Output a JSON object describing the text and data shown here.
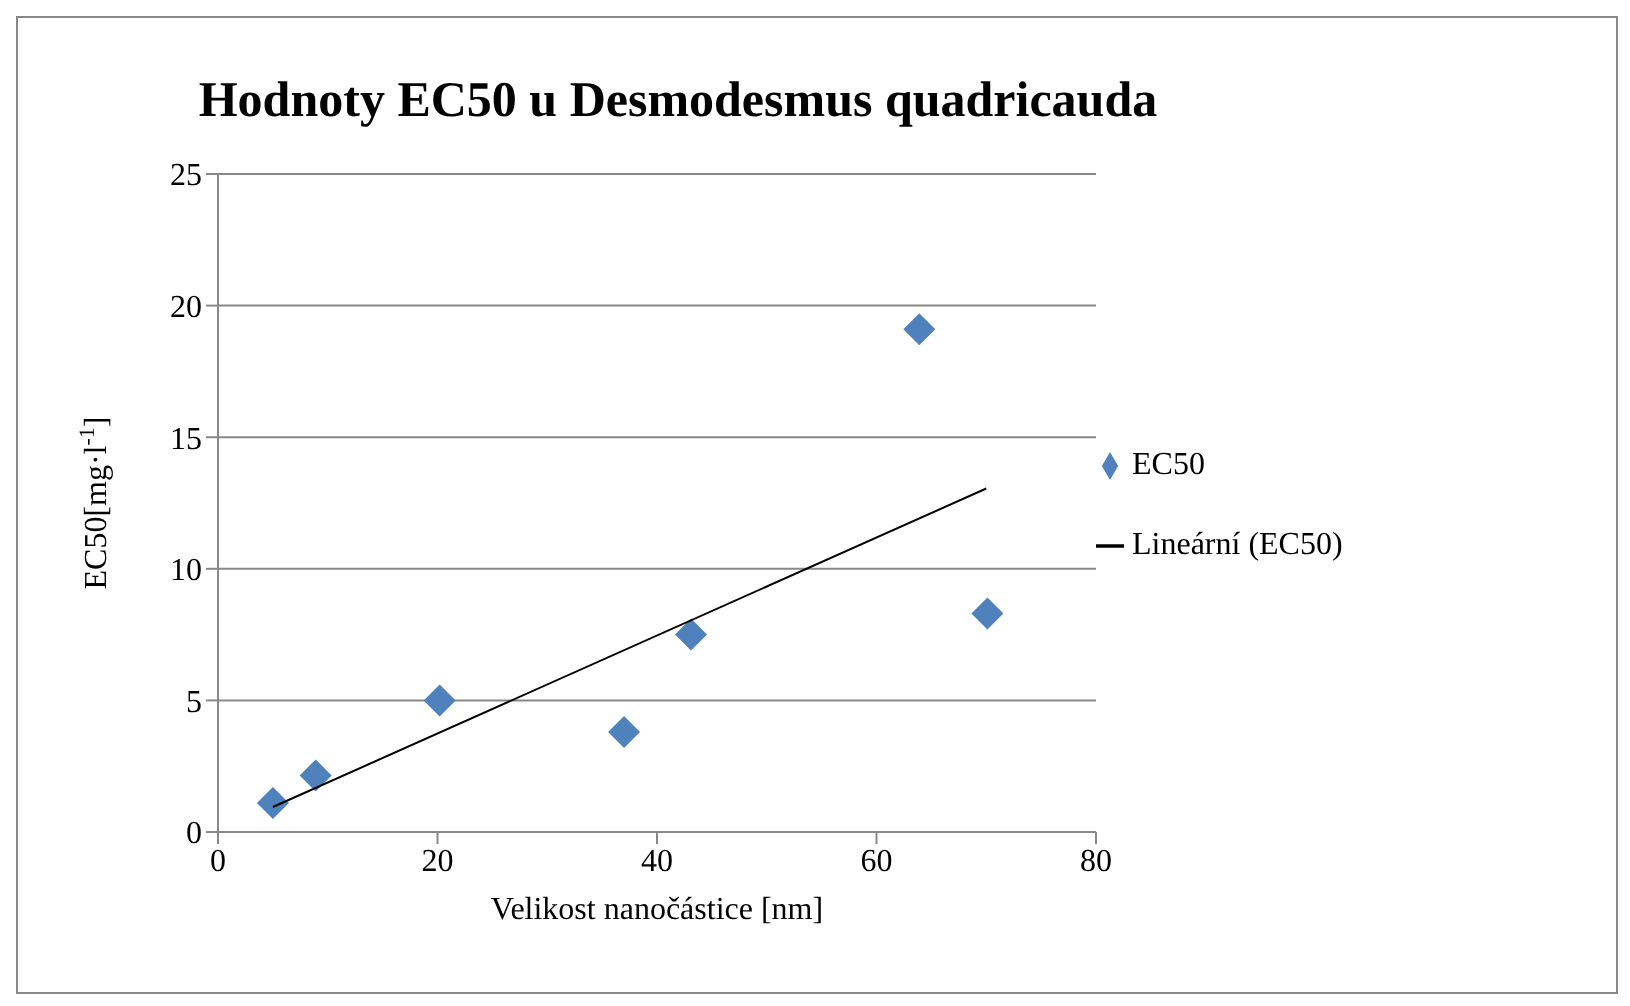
{
  "chart_data": {
    "type": "scatter",
    "title": "Hodnoty EC50 u Desmodesmus quadricauda",
    "xlabel": "Velikost nanočástice [nm]",
    "ylabel": "EC50[mg·l$^{-1}$]",
    "xlim": [
      0,
      80
    ],
    "xticks": [
      0,
      20,
      40,
      60,
      80
    ],
    "ylim": [
      0,
      25
    ],
    "yticks": [
      0,
      5,
      10,
      15,
      20,
      25
    ],
    "grid": "y",
    "legend": "right",
    "series": [
      {
        "name": "EC50",
        "color": "#4f81bd",
        "marker": "diamond",
        "x": [
          5,
          8.9,
          20.2,
          37,
          43.1,
          63.9,
          70.1
        ],
        "values": [
          1.1,
          2.15,
          5,
          3.8,
          7.5,
          19.1,
          8.3
        ]
      },
      {
        "name": "Lineární (EC50)",
        "type": "line",
        "color": "#000000",
        "marker": "none",
        "x": [
          5,
          70
        ],
        "values": [
          0.95,
          13.05
        ]
      }
    ]
  }
}
